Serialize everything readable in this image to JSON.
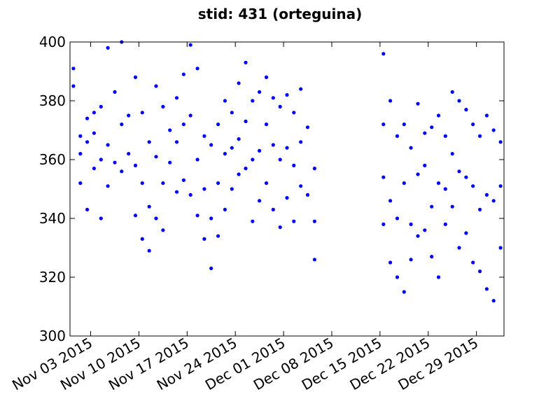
{
  "chart_data": {
    "type": "scatter",
    "title": "stid: 431 (orteguina)",
    "xlabel": "",
    "ylabel": "",
    "x_range": [
      "2015-10-31",
      "2016-01-02"
    ],
    "ylim": [
      300,
      400
    ],
    "y_ticks": [
      300,
      320,
      340,
      360,
      380,
      400
    ],
    "x_ticks": [
      "Nov 03 2015",
      "Nov 10 2015",
      "Nov 17 2015",
      "Nov 24 2015",
      "Dec 01 2015",
      "Dec 08 2015",
      "Dec 15 2015",
      "Dec 22 2015",
      "Dec 29 2015"
    ],
    "grid": false,
    "marker_color": "#0000ff",
    "series": [
      {
        "values": [
          [
            "2015-10-31",
            391
          ],
          [
            "2015-10-31",
            385
          ],
          [
            "2015-11-01",
            368
          ],
          [
            "2015-11-01",
            352
          ],
          [
            "2015-11-01",
            362
          ],
          [
            "2015-11-02",
            374
          ],
          [
            "2015-11-02",
            343
          ],
          [
            "2015-11-02",
            366
          ],
          [
            "2015-11-03",
            376
          ],
          [
            "2015-11-03",
            357
          ],
          [
            "2015-11-03",
            369
          ],
          [
            "2015-11-04",
            378
          ],
          [
            "2015-11-04",
            340
          ],
          [
            "2015-11-04",
            360
          ],
          [
            "2015-11-05",
            398
          ],
          [
            "2015-11-05",
            365
          ],
          [
            "2015-11-05",
            351
          ],
          [
            "2015-11-06",
            383
          ],
          [
            "2015-11-06",
            359
          ],
          [
            "2015-11-07",
            400
          ],
          [
            "2015-11-07",
            372
          ],
          [
            "2015-11-07",
            356
          ],
          [
            "2015-11-08",
            375
          ],
          [
            "2015-11-08",
            362
          ],
          [
            "2015-11-09",
            388
          ],
          [
            "2015-11-09",
            358
          ],
          [
            "2015-11-09",
            341
          ],
          [
            "2015-11-10",
            376
          ],
          [
            "2015-11-10",
            333
          ],
          [
            "2015-11-10",
            352
          ],
          [
            "2015-11-11",
            366
          ],
          [
            "2015-11-11",
            329
          ],
          [
            "2015-11-11",
            344
          ],
          [
            "2015-11-12",
            385
          ],
          [
            "2015-11-12",
            361
          ],
          [
            "2015-11-12",
            340
          ],
          [
            "2015-11-13",
            378
          ],
          [
            "2015-11-13",
            352
          ],
          [
            "2015-11-13",
            336
          ],
          [
            "2015-11-14",
            370
          ],
          [
            "2015-11-14",
            359
          ],
          [
            "2015-11-15",
            381
          ],
          [
            "2015-11-15",
            366
          ],
          [
            "2015-11-15",
            349
          ],
          [
            "2015-11-16",
            389
          ],
          [
            "2015-11-16",
            372
          ],
          [
            "2015-11-16",
            353
          ],
          [
            "2015-11-17",
            399
          ],
          [
            "2015-11-17",
            375
          ],
          [
            "2015-11-17",
            348
          ],
          [
            "2015-11-18",
            391
          ],
          [
            "2015-11-18",
            360
          ],
          [
            "2015-11-18",
            341
          ],
          [
            "2015-11-19",
            368
          ],
          [
            "2015-11-19",
            333
          ],
          [
            "2015-11-19",
            350
          ],
          [
            "2015-11-20",
            365
          ],
          [
            "2015-11-20",
            323
          ],
          [
            "2015-11-20",
            340
          ],
          [
            "2015-11-21",
            372
          ],
          [
            "2015-11-21",
            334
          ],
          [
            "2015-11-21",
            352
          ],
          [
            "2015-11-22",
            380
          ],
          [
            "2015-11-22",
            343
          ],
          [
            "2015-11-22",
            362
          ],
          [
            "2015-11-23",
            376
          ],
          [
            "2015-11-23",
            350
          ],
          [
            "2015-11-23",
            364
          ],
          [
            "2015-11-24",
            386
          ],
          [
            "2015-11-24",
            367
          ],
          [
            "2015-11-24",
            355
          ],
          [
            "2015-11-25",
            393
          ],
          [
            "2015-11-25",
            373
          ],
          [
            "2015-11-25",
            357
          ],
          [
            "2015-11-26",
            380
          ],
          [
            "2015-11-26",
            360
          ],
          [
            "2015-11-26",
            339
          ],
          [
            "2015-11-27",
            383
          ],
          [
            "2015-11-27",
            363
          ],
          [
            "2015-11-27",
            346
          ],
          [
            "2015-11-28",
            388
          ],
          [
            "2015-11-28",
            372
          ],
          [
            "2015-11-28",
            352
          ],
          [
            "2015-11-29",
            381
          ],
          [
            "2015-11-29",
            365
          ],
          [
            "2015-11-29",
            343
          ],
          [
            "2015-11-30",
            378
          ],
          [
            "2015-11-30",
            360
          ],
          [
            "2015-11-30",
            337
          ],
          [
            "2015-12-01",
            382
          ],
          [
            "2015-12-01",
            364
          ],
          [
            "2015-12-01",
            347
          ],
          [
            "2015-12-02",
            376
          ],
          [
            "2015-12-02",
            358
          ],
          [
            "2015-12-02",
            339
          ],
          [
            "2015-12-03",
            384
          ],
          [
            "2015-12-03",
            366
          ],
          [
            "2015-12-03",
            351
          ],
          [
            "2015-12-04",
            371
          ],
          [
            "2015-12-04",
            348
          ],
          [
            "2015-12-05",
            357
          ],
          [
            "2015-12-05",
            339
          ],
          [
            "2015-12-05",
            326
          ],
          [
            "2015-12-15",
            396
          ],
          [
            "2015-12-15",
            372
          ],
          [
            "2015-12-15",
            354
          ],
          [
            "2015-12-15",
            338
          ],
          [
            "2015-12-16",
            380
          ],
          [
            "2015-12-16",
            346
          ],
          [
            "2015-12-16",
            325
          ],
          [
            "2015-12-17",
            368
          ],
          [
            "2015-12-17",
            340
          ],
          [
            "2015-12-17",
            320
          ],
          [
            "2015-12-18",
            372
          ],
          [
            "2015-12-18",
            352
          ],
          [
            "2015-12-18",
            315
          ],
          [
            "2015-12-19",
            364
          ],
          [
            "2015-12-19",
            338
          ],
          [
            "2015-12-19",
            326
          ],
          [
            "2015-12-20",
            379
          ],
          [
            "2015-12-20",
            355
          ],
          [
            "2015-12-20",
            334
          ],
          [
            "2015-12-21",
            369
          ],
          [
            "2015-12-21",
            358
          ],
          [
            "2015-12-21",
            336
          ],
          [
            "2015-12-22",
            371
          ],
          [
            "2015-12-22",
            344
          ],
          [
            "2015-12-22",
            327
          ],
          [
            "2015-12-23",
            375
          ],
          [
            "2015-12-23",
            352
          ],
          [
            "2015-12-23",
            320
          ],
          [
            "2015-12-24",
            368
          ],
          [
            "2015-12-24",
            350
          ],
          [
            "2015-12-24",
            338
          ],
          [
            "2015-12-25",
            383
          ],
          [
            "2015-12-25",
            362
          ],
          [
            "2015-12-25",
            344
          ],
          [
            "2015-12-26",
            380
          ],
          [
            "2015-12-26",
            356
          ],
          [
            "2015-12-26",
            330
          ],
          [
            "2015-12-27",
            377
          ],
          [
            "2015-12-27",
            354
          ],
          [
            "2015-12-27",
            335
          ],
          [
            "2015-12-28",
            372
          ],
          [
            "2015-12-28",
            351
          ],
          [
            "2015-12-28",
            325
          ],
          [
            "2015-12-29",
            368
          ],
          [
            "2015-12-29",
            343
          ],
          [
            "2015-12-29",
            322
          ],
          [
            "2015-12-30",
            375
          ],
          [
            "2015-12-30",
            348
          ],
          [
            "2015-12-30",
            316
          ],
          [
            "2015-12-31",
            370
          ],
          [
            "2015-12-31",
            346
          ],
          [
            "2015-12-31",
            312
          ],
          [
            "2016-01-01",
            366
          ],
          [
            "2016-01-01",
            351
          ],
          [
            "2016-01-01",
            330
          ]
        ]
      }
    ]
  }
}
